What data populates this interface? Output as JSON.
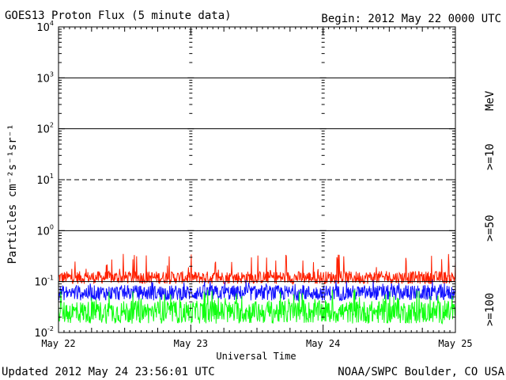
{
  "header": {
    "title": "GOES13 Proton Flux (5 minute data)",
    "begin": "Begin: 2012 May 22 0000 UTC"
  },
  "footer": {
    "updated": "Updated 2012 May 24 23:56:01 UTC",
    "source": "NOAA/SWPC Boulder, CO USA"
  },
  "chart_data": {
    "type": "line",
    "title": "GOES13 Proton Flux (5 minute data)",
    "xlabel": "Universal Time",
    "ylabel": "Particles cm⁻²s⁻¹sr⁻¹",
    "y_scale": "log",
    "ylim": [
      0.01,
      10000
    ],
    "xlim_days": [
      "May 22",
      "May 25"
    ],
    "x_ticks": [
      "May 22",
      "May 23",
      "May 24",
      "May 25"
    ],
    "y_ticks": [
      {
        "base": "10",
        "exp": "4"
      },
      {
        "base": "10",
        "exp": "3"
      },
      {
        "base": "10",
        "exp": "2"
      },
      {
        "base": "10",
        "exp": "1"
      },
      {
        "base": "10",
        "exp": "0"
      },
      {
        "base": "10",
        "exp": "-1"
      },
      {
        "base": "10",
        "exp": "-2"
      }
    ],
    "y_tick_values": [
      10000,
      1000,
      100,
      10,
      1,
      0.1,
      0.01
    ],
    "reference_lines": [
      {
        "value": 1000,
        "style": "solid"
      },
      {
        "value": 100,
        "style": "solid"
      },
      {
        "value": 10,
        "style": "dashed"
      },
      {
        "value": 1,
        "style": "solid"
      },
      {
        "value": 0.1,
        "style": "solid"
      }
    ],
    "unit_label": "MeV",
    "series": [
      {
        "name": ">=10",
        "color": "#ff2000",
        "baseline": 0.12,
        "spike_max": 0.35,
        "noise": 0.25
      },
      {
        "name": ">=50",
        "color": "#1010ff",
        "baseline": 0.06,
        "spike_max": 0.11,
        "noise": 0.3
      },
      {
        "name": ">=100",
        "color": "#10ff10",
        "baseline": 0.025,
        "spike_max": 0.07,
        "noise": 0.45
      }
    ],
    "points_per_day": 288,
    "grid": false,
    "legend": "right side, rotated text"
  }
}
